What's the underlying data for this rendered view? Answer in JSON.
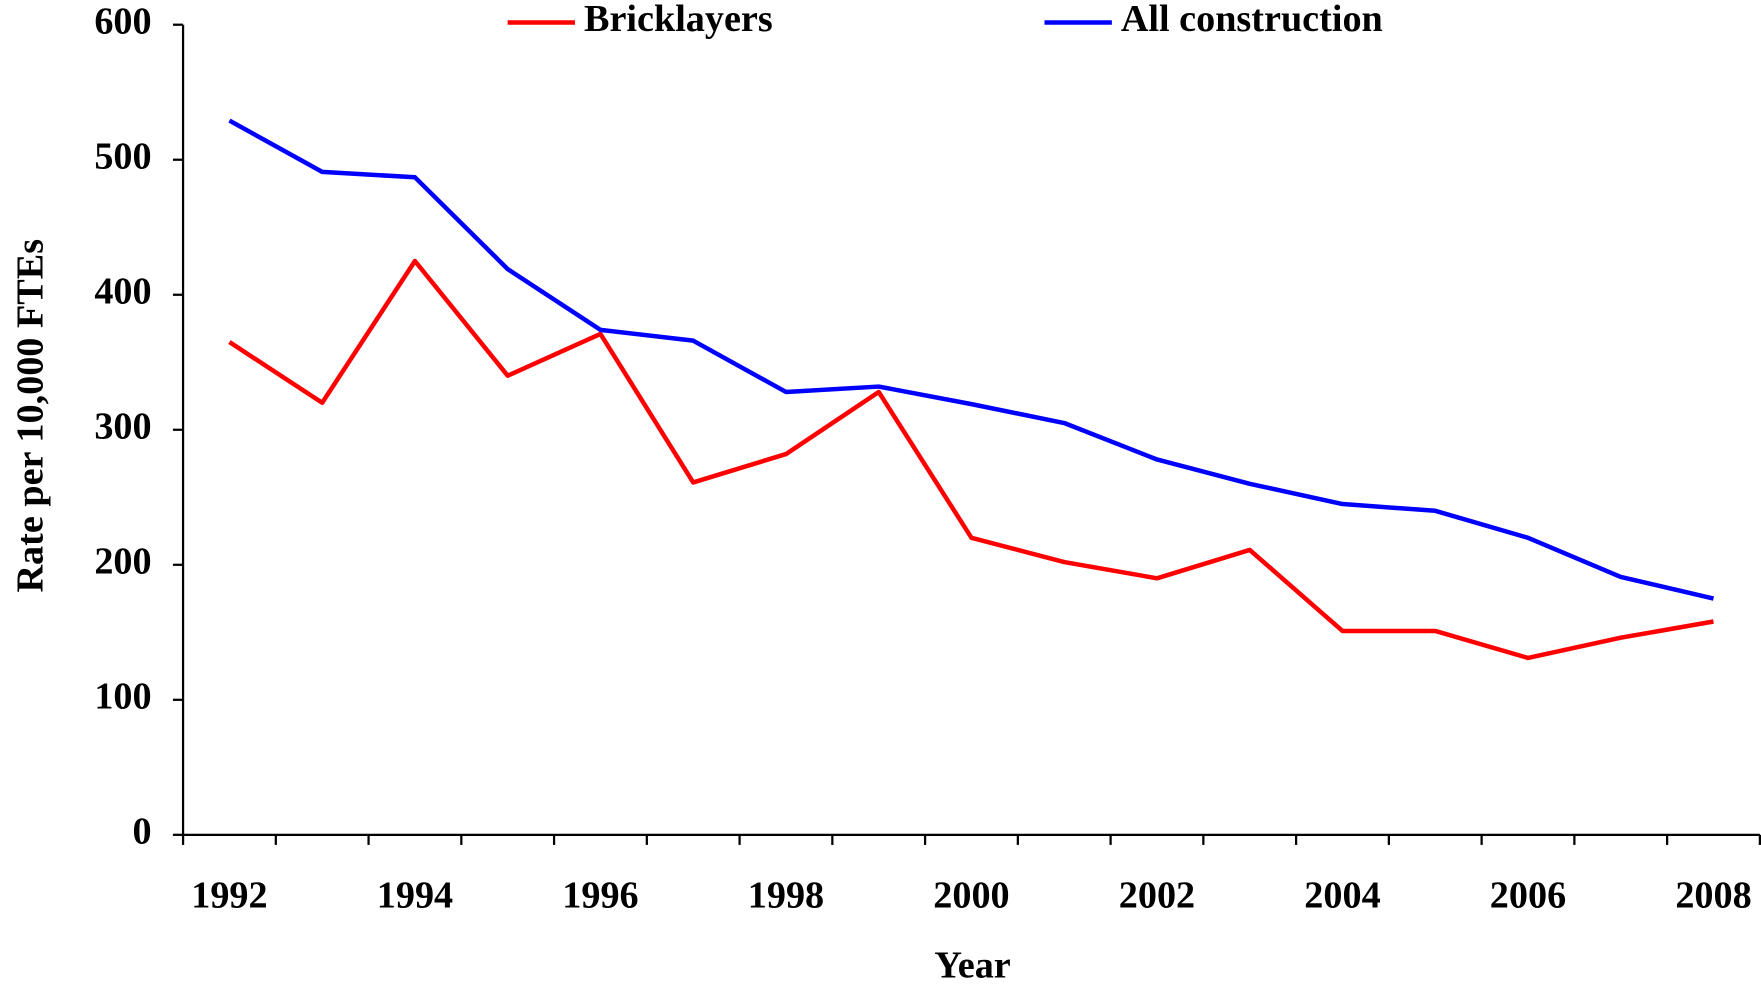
{
  "chart_data": {
    "type": "line",
    "xlabel": "Year",
    "ylabel": "Rate per 10,000 FTEs",
    "categories": [
      "1992",
      null,
      "1994",
      null,
      "1996",
      null,
      "1998",
      null,
      "2000",
      null,
      "2002",
      null,
      "2004",
      null,
      "2006",
      null,
      "2008"
    ],
    "series": [
      {
        "name": "Bricklayers",
        "color": "#ff0000",
        "values": [
          365,
          320,
          425,
          340,
          371,
          261,
          282,
          328,
          220,
          202,
          190,
          211,
          151,
          151,
          131,
          146,
          158
        ]
      },
      {
        "name": "All construction",
        "color": "#0000ff",
        "values": [
          529,
          491,
          487,
          419,
          374,
          366,
          328,
          332,
          319,
          305,
          278,
          260,
          245,
          240,
          220,
          191,
          175
        ]
      }
    ],
    "ylim": [
      0,
      600
    ],
    "yticks": [
      0,
      100,
      200,
      300,
      400,
      500,
      600
    ],
    "grid": false,
    "legend": "top"
  }
}
